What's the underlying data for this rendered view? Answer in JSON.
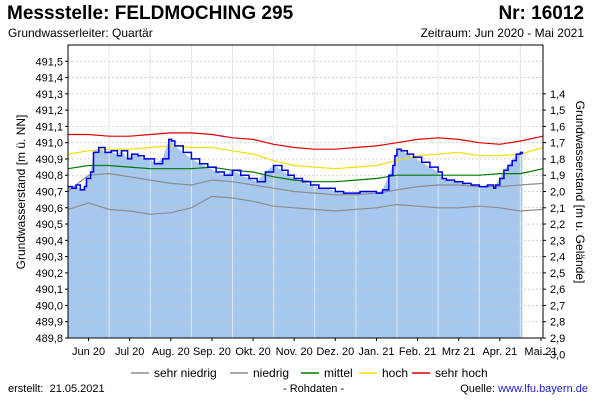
{
  "header": {
    "title": "Messstelle: FELDMOCHING 295",
    "station_number": "Nr: 16012",
    "aquifer": "Grundwasserleiter: Quartär",
    "period": "Zeitraum: Jun 2020 - Mai 2021"
  },
  "footer": {
    "created_label": "erstellt:",
    "created_date": "21.05.2021",
    "raw_data": "- Rohdaten -",
    "source_label": "Quelle:",
    "source_url": "www.lfu.bayern.de"
  },
  "colors": {
    "plot_background": "#ffffff",
    "fill": "#a6c8ef",
    "measured": "#0000e6",
    "very_low": "#8c8c8c",
    "low": "#8c8c8c",
    "mean": "#007a00",
    "high": "#f0e000",
    "very_high": "#e00000"
  },
  "chart_data": {
    "type": "area",
    "title": "Messstelle: FELDMOCHING 295",
    "ylabel_left": "Grundwasserstand [m ü. NN]",
    "ylabel_right": "Grundwasserstand [m u. Gelände]",
    "ylim_left": [
      489.8,
      491.6
    ],
    "ylim_right": [
      1.3,
      3.1
    ],
    "right_axis_reference": 492.7,
    "yticks_left": [
      "489,8",
      "489,9",
      "490,0",
      "490,1",
      "490,2",
      "490,3",
      "490,4",
      "490,5",
      "490,6",
      "490,7",
      "490,8",
      "490,9",
      "491,0",
      "491,1",
      "491,2",
      "491,3",
      "491,4",
      "491,5"
    ],
    "yticks_right": [
      "1,4",
      "1,5",
      "1,6",
      "1,7",
      "1,8",
      "1,9",
      "2,0",
      "2,1",
      "2,2",
      "2,3",
      "2,4",
      "2,5",
      "2,6",
      "2,7",
      "2,8",
      "2,9",
      "3,0"
    ],
    "xlim": [
      0,
      11.55
    ],
    "xticks": [
      {
        "pos": 0.5,
        "label": "Jun 20"
      },
      {
        "pos": 1.5,
        "label": "Jul 20"
      },
      {
        "pos": 2.5,
        "label": "Aug. 20"
      },
      {
        "pos": 3.5,
        "label": "Sep. 20"
      },
      {
        "pos": 4.5,
        "label": "Okt. 20"
      },
      {
        "pos": 5.5,
        "label": "Nov. 20"
      },
      {
        "pos": 6.5,
        "label": "Dez. 20"
      },
      {
        "pos": 7.5,
        "label": "Jan. 21"
      },
      {
        "pos": 8.5,
        "label": "Feb. 21"
      },
      {
        "pos": 9.5,
        "label": "Mrz 21"
      },
      {
        "pos": 10.5,
        "label": "Apr. 21"
      },
      {
        "pos": 11.5,
        "label": "Mai 21"
      }
    ],
    "series": [
      {
        "name": "sehr niedrig",
        "key": "very_low",
        "x": [
          0,
          0.5,
          1.0,
          1.5,
          2.0,
          2.5,
          3.0,
          3.5,
          4.0,
          4.5,
          5.0,
          5.5,
          6.0,
          6.5,
          7.0,
          7.5,
          8.0,
          8.5,
          9.0,
          9.5,
          10.0,
          10.5,
          11.0,
          11.55
        ],
        "values": [
          490.59,
          490.63,
          490.59,
          490.58,
          490.56,
          490.57,
          490.6,
          490.67,
          490.66,
          490.64,
          490.61,
          490.6,
          490.59,
          490.58,
          490.59,
          490.6,
          490.62,
          490.61,
          490.6,
          490.6,
          490.61,
          490.6,
          490.58,
          490.59
        ]
      },
      {
        "name": "niedrig",
        "key": "low",
        "x": [
          0,
          0.5,
          1.0,
          1.5,
          2.0,
          2.5,
          3.0,
          3.5,
          4.0,
          4.5,
          5.0,
          5.5,
          6.0,
          6.5,
          7.0,
          7.5,
          8.0,
          8.5,
          9.0,
          9.5,
          10.0,
          10.5,
          11.0,
          11.55
        ],
        "values": [
          490.7,
          490.8,
          490.81,
          490.79,
          490.77,
          490.75,
          490.74,
          490.77,
          490.76,
          490.74,
          490.72,
          490.7,
          490.69,
          490.68,
          490.68,
          490.69,
          490.71,
          490.73,
          490.74,
          490.74,
          490.73,
          490.73,
          490.74,
          490.75
        ]
      },
      {
        "name": "mittel",
        "key": "mean",
        "x": [
          0,
          0.5,
          1.0,
          1.5,
          2.0,
          2.5,
          3.0,
          3.5,
          4.0,
          4.5,
          5.0,
          5.5,
          6.0,
          6.5,
          7.0,
          7.5,
          8.0,
          8.5,
          9.0,
          9.5,
          10.0,
          10.5,
          11.0,
          11.55
        ],
        "values": [
          490.84,
          490.86,
          490.86,
          490.85,
          490.84,
          490.84,
          490.84,
          490.85,
          490.83,
          490.82,
          490.79,
          490.77,
          490.76,
          490.76,
          490.77,
          490.78,
          490.8,
          490.8,
          490.8,
          490.8,
          490.8,
          490.81,
          490.81,
          490.84
        ]
      },
      {
        "name": "hoch",
        "key": "high",
        "x": [
          0,
          0.5,
          1.0,
          1.5,
          2.0,
          2.5,
          3.0,
          3.5,
          4.0,
          4.5,
          5.0,
          5.5,
          6.0,
          6.5,
          7.0,
          7.5,
          8.0,
          8.5,
          9.0,
          9.5,
          10.0,
          10.5,
          11.0,
          11.55
        ],
        "values": [
          490.93,
          490.95,
          490.96,
          490.96,
          490.97,
          490.98,
          490.97,
          490.97,
          490.95,
          490.93,
          490.89,
          490.86,
          490.85,
          490.84,
          490.85,
          490.86,
          490.89,
          490.92,
          490.93,
          490.94,
          490.92,
          490.92,
          490.93,
          490.97
        ]
      },
      {
        "name": "sehr hoch",
        "key": "very_high",
        "x": [
          0,
          0.5,
          1.0,
          1.5,
          2.0,
          2.5,
          3.0,
          3.5,
          4.0,
          4.5,
          5.0,
          5.5,
          6.0,
          6.5,
          7.0,
          7.5,
          8.0,
          8.5,
          9.0,
          9.5,
          10.0,
          10.5,
          11.0,
          11.55
        ],
        "values": [
          491.05,
          491.05,
          491.04,
          491.04,
          491.05,
          491.06,
          491.06,
          491.05,
          491.03,
          491.02,
          490.99,
          490.97,
          490.96,
          490.96,
          490.97,
          490.98,
          491.0,
          491.02,
          491.03,
          491.02,
          491.0,
          490.99,
          491.01,
          491.04
        ]
      },
      {
        "name": "Grundwasserstand (Rohdaten)",
        "key": "measured",
        "x": [
          0,
          0.1,
          0.2,
          0.3,
          0.4,
          0.45,
          0.55,
          0.62,
          0.75,
          0.9,
          1.05,
          1.2,
          1.3,
          1.45,
          1.55,
          1.7,
          1.85,
          2.0,
          2.1,
          2.3,
          2.45,
          2.52,
          2.6,
          2.8,
          3.0,
          3.2,
          3.4,
          3.6,
          3.8,
          4.0,
          4.2,
          4.4,
          4.6,
          4.8,
          5.0,
          5.2,
          5.35,
          5.5,
          5.7,
          5.9,
          6.1,
          6.3,
          6.5,
          6.7,
          6.9,
          7.1,
          7.3,
          7.5,
          7.65,
          7.8,
          7.9,
          7.95,
          8.0,
          8.1,
          8.25,
          8.4,
          8.6,
          8.8,
          9.0,
          9.1,
          9.2,
          9.4,
          9.6,
          9.8,
          10.0,
          10.2,
          10.35,
          10.4,
          10.5,
          10.6,
          10.7,
          10.8,
          10.9,
          11.0,
          11.05
        ],
        "values": [
          490.73,
          490.72,
          490.74,
          490.71,
          490.73,
          490.78,
          490.82,
          490.94,
          490.97,
          490.94,
          490.95,
          490.92,
          490.95,
          490.9,
          490.93,
          490.92,
          490.9,
          490.9,
          490.87,
          490.9,
          491.02,
          491.01,
          490.98,
          490.94,
          490.9,
          490.87,
          490.85,
          490.82,
          490.8,
          490.83,
          490.8,
          490.78,
          490.76,
          490.82,
          490.86,
          490.83,
          490.8,
          490.78,
          490.76,
          490.74,
          490.72,
          490.72,
          490.7,
          490.69,
          490.69,
          490.7,
          490.7,
          490.69,
          490.71,
          490.8,
          490.86,
          490.92,
          490.96,
          490.95,
          490.93,
          490.91,
          490.88,
          490.85,
          490.82,
          490.78,
          490.77,
          490.76,
          490.75,
          490.74,
          490.73,
          490.74,
          490.72,
          490.74,
          490.78,
          490.83,
          490.86,
          490.89,
          490.93,
          490.94,
          490.93
        ]
      }
    ]
  }
}
